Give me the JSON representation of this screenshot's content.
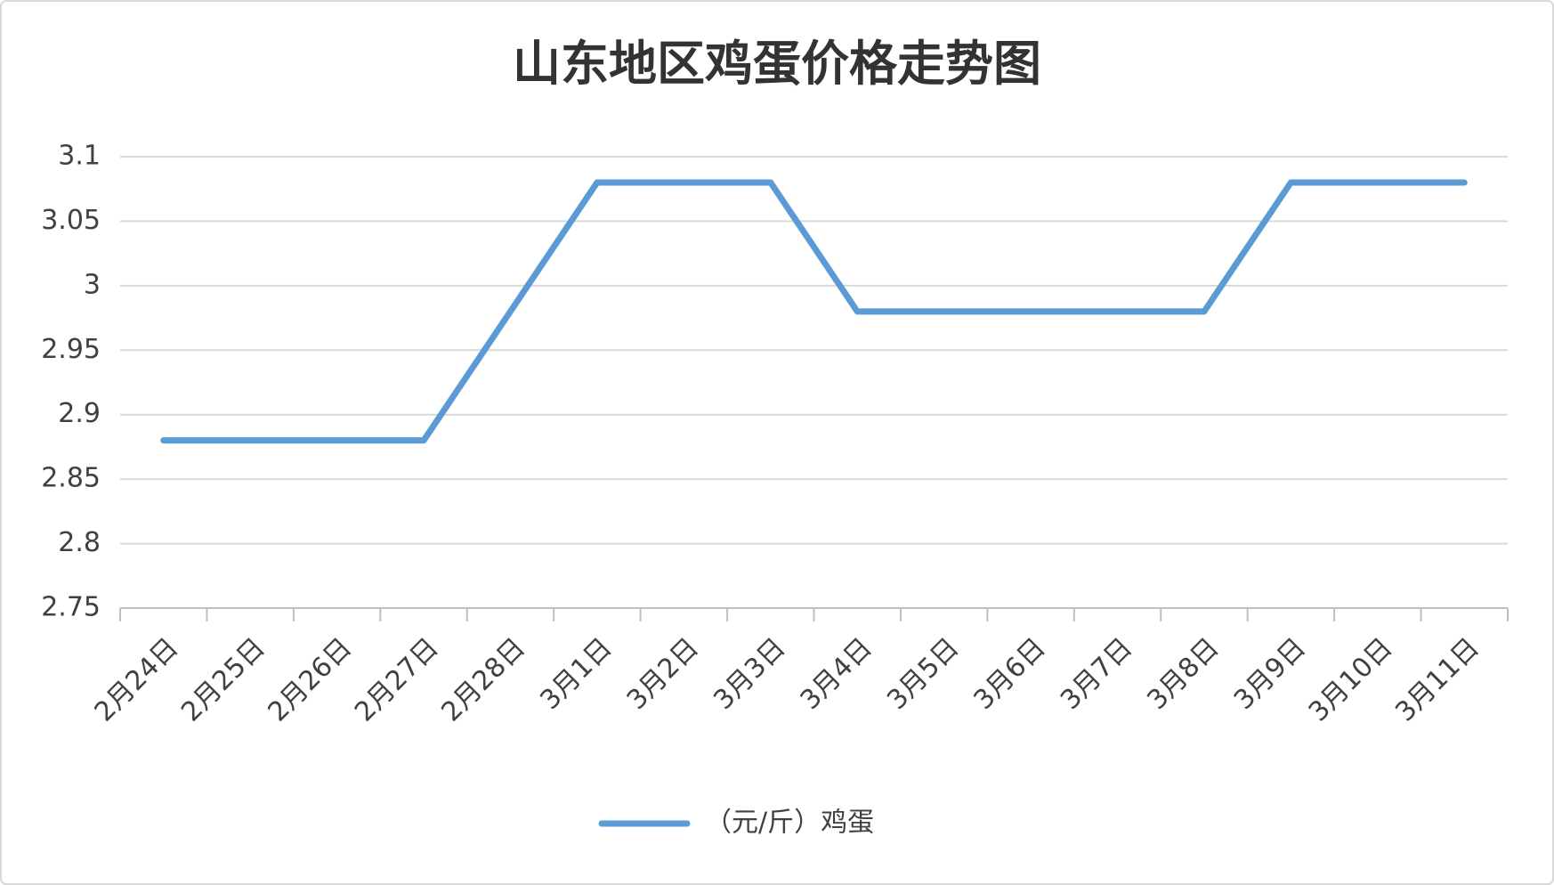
{
  "chart_data": {
    "type": "line",
    "title": "山东地区鸡蛋价格走势图",
    "categories": [
      "2月24日",
      "2月25日",
      "2月26日",
      "2月27日",
      "2月28日",
      "3月1日",
      "3月2日",
      "3月3日",
      "3月4日",
      "3月5日",
      "3月6日",
      "3月7日",
      "3月8日",
      "3月9日",
      "3月10日",
      "3月11日"
    ],
    "series": [
      {
        "name": "（元/斤）鸡蛋",
        "color": "#5b9bd5",
        "values": [
          2.88,
          2.88,
          2.88,
          2.88,
          2.98,
          3.08,
          3.08,
          3.08,
          2.98,
          2.98,
          2.98,
          2.98,
          2.98,
          3.08,
          3.08,
          3.08
        ]
      }
    ],
    "ylim": [
      2.75,
      3.1
    ],
    "yticks": [
      2.75,
      2.8,
      2.85,
      2.9,
      2.95,
      3,
      3.05,
      3.1
    ],
    "grid": true,
    "legend": "bottom"
  }
}
